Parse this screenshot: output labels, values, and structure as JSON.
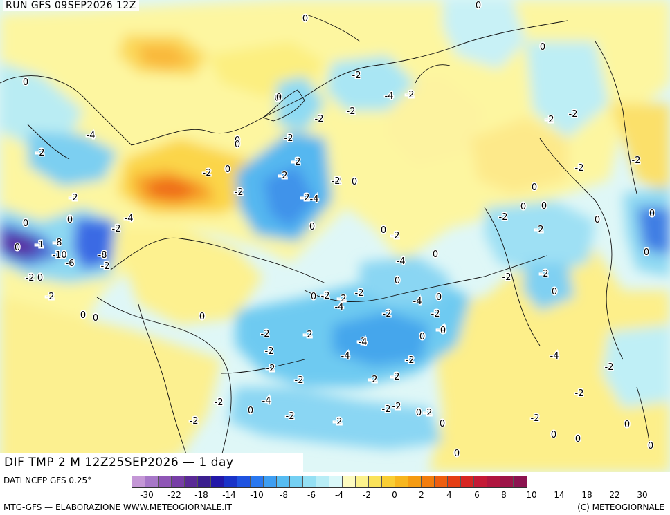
{
  "header": {
    "run": "RUN GFS 09SEP2026 12Z"
  },
  "footer": {
    "field_title": "DIF TMP 2 M 12Z25SEP2026 — 1 day",
    "source": "DATI NCEP GFS 0.25°",
    "credit_left": "MTG-GFS — ELABORAZIONE WWW.METEOGIORNALE.IT",
    "credit_right": "(C) METEOGIORNALE"
  },
  "colorbar": {
    "colors": [
      "#c497d6",
      "#a777c8",
      "#8f56b6",
      "#773ea6",
      "#5a2a96",
      "#3b1f8f",
      "#2318a8",
      "#1a33c8",
      "#1f53e0",
      "#2a78f0",
      "#3e9ef2",
      "#56bcf2",
      "#74d0f3",
      "#95e0f4",
      "#b8edf6",
      "#daf8f9",
      "#fdfbc0",
      "#fcf28c",
      "#fae25a",
      "#f9ce34",
      "#f7b61e",
      "#f59b12",
      "#f27d0e",
      "#ee5e10",
      "#e53e14",
      "#d72622",
      "#c41a36",
      "#b0163f",
      "#9d1448",
      "#8c1350"
    ],
    "labels": [
      "-30",
      "-22",
      "-18",
      "-14",
      "-10",
      "-8",
      "-6",
      "-4",
      "-2",
      "0",
      "2",
      "4",
      "6",
      "8",
      "10",
      "14",
      "18",
      "22",
      "30"
    ]
  },
  "map_labels": [
    "0",
    "0",
    "0",
    "-2",
    "0",
    "-2",
    "-2",
    "-2",
    "-2",
    "0",
    "0",
    "-2",
    "-2",
    "-2",
    "-2",
    "-4",
    "-2",
    "0",
    "0",
    "-2",
    "0",
    "-2",
    "-4",
    "-2",
    "0",
    "-4",
    "-2",
    "-2",
    "0",
    "-2",
    "-4",
    "-4",
    "0",
    "-2",
    "0",
    "-4",
    "0",
    "-2",
    "-2",
    "-2",
    "-2",
    "-2",
    "-4",
    "-2",
    "0",
    "0",
    "0",
    "-8",
    "-1",
    "-10",
    "-6",
    "-2",
    "-8",
    "-2",
    "0",
    "-2",
    "0",
    "0",
    "0",
    "0",
    "-2",
    "-2",
    "-2",
    "-2",
    "-4",
    "-2",
    "-2",
    "-2",
    "-4",
    "-4",
    "-4",
    "-4",
    "-2",
    "-2",
    "0",
    "-2",
    "-2",
    "-2",
    "-2",
    "0",
    "-4",
    "-2",
    "-2",
    "-2",
    "0",
    "-2",
    "0",
    "0",
    "0",
    "0",
    "0",
    "0",
    "-2",
    "-2",
    "0",
    "0",
    "0",
    "-2",
    "0",
    "0",
    "-2",
    "0",
    "-2",
    "0",
    "0",
    "-2",
    "-2",
    "0",
    "-2",
    "-2",
    "0",
    "0",
    "0",
    "0"
  ]
}
